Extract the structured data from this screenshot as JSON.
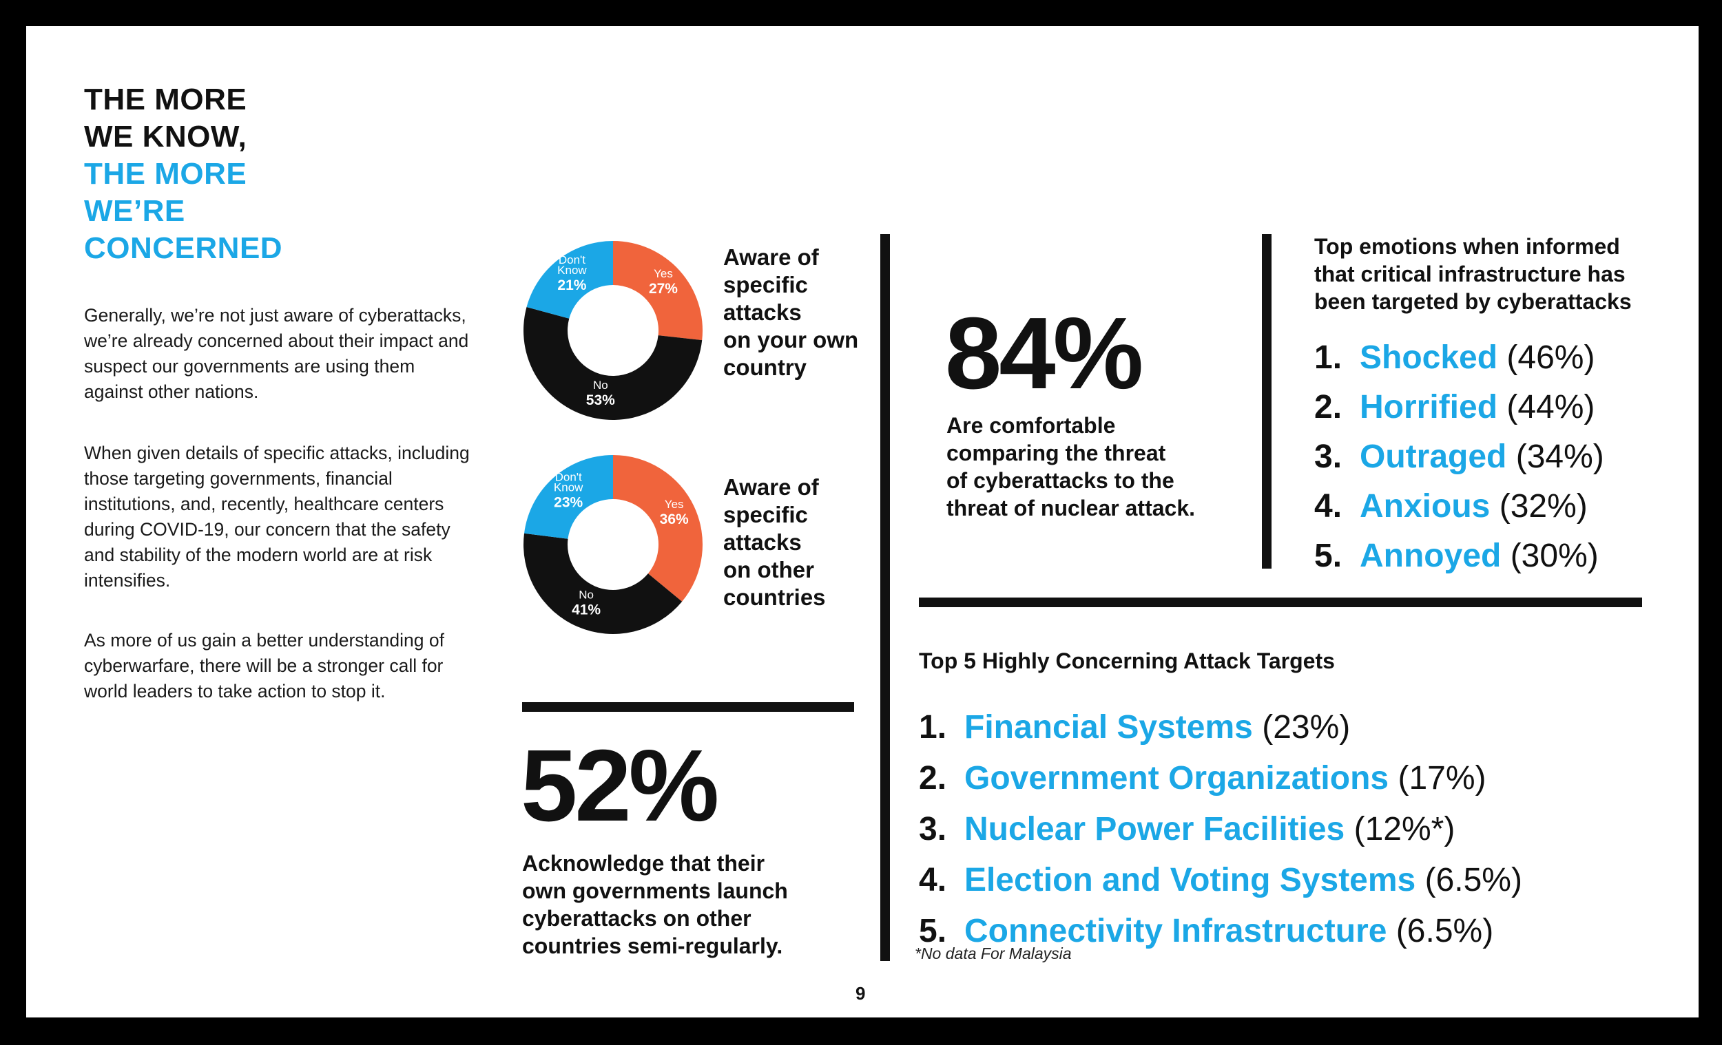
{
  "title": {
    "line1": "THE MORE",
    "line2": "WE KNOW,",
    "line3": "THE MORE",
    "line4": "WE’RE",
    "line5": "CONCERNED"
  },
  "body": {
    "p1": "Generally, we’re not just aware of cyberattacks, we’re already concerned about their impact and suspect our governments are using them against other nations.",
    "p2": "When given details of specific attacks, including those targeting governments, financial institutions, and, recently, healthcare centers during COVID-19, our concern that the safety and stability of the modern world are at risk intensifies.",
    "p3": "As more of us gain a better understanding of cyberwarfare, there will be a stronger call for world leaders to take action to stop it."
  },
  "colors": {
    "accent": "#1ba7e6",
    "orange": "#f0643c",
    "black": "#111111"
  },
  "chart_data": [
    {
      "type": "pie",
      "caption": "Aware of specific attacks on your own country",
      "slices": [
        {
          "label": "Yes",
          "value": 27,
          "display": "27%",
          "color": "#f0643c"
        },
        {
          "label": "No",
          "value": 53,
          "display": "53%",
          "color": "#111111"
        },
        {
          "label": "Don't Know",
          "value": 21,
          "display": "21%",
          "color": "#1ba7e6"
        }
      ]
    },
    {
      "type": "pie",
      "caption": "Aware of specific attacks on other countries",
      "slices": [
        {
          "label": "Yes",
          "value": 36,
          "display": "36%",
          "color": "#f0643c"
        },
        {
          "label": "No",
          "value": 41,
          "display": "41%",
          "color": "#111111"
        },
        {
          "label": "Don't Know",
          "value": 23,
          "display": "23%",
          "color": "#1ba7e6"
        }
      ]
    }
  ],
  "donut_captions": {
    "first": [
      "Aware of",
      "specific",
      "attacks",
      "on your own",
      "country"
    ],
    "second": [
      "Aware of",
      "specific",
      "attacks",
      "on other",
      "countries"
    ]
  },
  "stat52": {
    "value": "52%",
    "caption": [
      "Acknowledge that their",
      "own governments launch",
      "cyberattacks on other",
      "countries semi-regularly."
    ]
  },
  "stat84": {
    "value": "84%",
    "caption": [
      "Are comfortable",
      "comparing the threat",
      "of cyberattacks to the",
      "threat of nuclear attack."
    ]
  },
  "emotions": {
    "heading": [
      "Top emotions when informed",
      "that critical infrastructure has",
      "been targeted by cyberattacks"
    ],
    "items": [
      {
        "num": "1.",
        "label": "Shocked",
        "pct": "(46%)"
      },
      {
        "num": "2.",
        "label": "Horrified",
        "pct": "(44%)"
      },
      {
        "num": "3.",
        "label": "Outraged",
        "pct": "(34%)"
      },
      {
        "num": "4.",
        "label": "Anxious",
        "pct": "(32%)"
      },
      {
        "num": "5.",
        "label": "Annoyed",
        "pct": "(30%)"
      }
    ]
  },
  "targets": {
    "heading": "Top 5 Highly Concerning Attack Targets",
    "items": [
      {
        "num": "1.",
        "label": "Financial Systems",
        "pct": "(23%)"
      },
      {
        "num": "2.",
        "label": "Government Organizations",
        "pct": "(17%)"
      },
      {
        "num": "3.",
        "label": "Nuclear Power Facilities",
        "pct": "(12%*)"
      },
      {
        "num": "4.",
        "label": "Election and Voting Systems",
        "pct": "(6.5%)"
      },
      {
        "num": "5.",
        "label": "Connectivity Infrastructure",
        "pct": "(6.5%)"
      }
    ],
    "footnote": "*No data For Malaysia"
  },
  "page_number": "9"
}
